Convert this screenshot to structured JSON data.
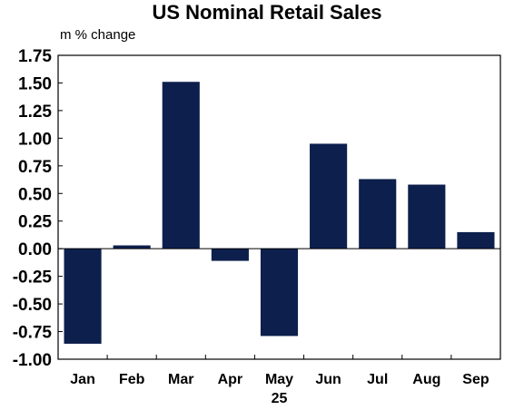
{
  "chart_data": {
    "type": "bar",
    "title": "US Nominal Retail Sales",
    "unit_label": "m % change",
    "categories": [
      "Jan",
      "Feb",
      "Mar",
      "Apr",
      "May",
      "Jun",
      "Jul",
      "Aug",
      "Sep"
    ],
    "year_label": {
      "category": "May",
      "text": "25"
    },
    "values": [
      -0.86,
      0.03,
      1.51,
      -0.11,
      -0.79,
      0.95,
      0.63,
      0.58,
      0.15
    ],
    "ylim": [
      -1.0,
      1.75
    ],
    "yticks": [
      "1.75",
      "1.50",
      "1.25",
      "1.00",
      "0.75",
      "0.50",
      "0.25",
      "0.00",
      "-0.25",
      "-0.50",
      "-0.75",
      "-1.00"
    ],
    "ytick_values": [
      1.75,
      1.5,
      1.25,
      1.0,
      0.75,
      0.5,
      0.25,
      0.0,
      -0.25,
      -0.5,
      -0.75,
      -1.0
    ],
    "bar_color": "#0d1f4c",
    "grid": false,
    "legend": "none"
  }
}
